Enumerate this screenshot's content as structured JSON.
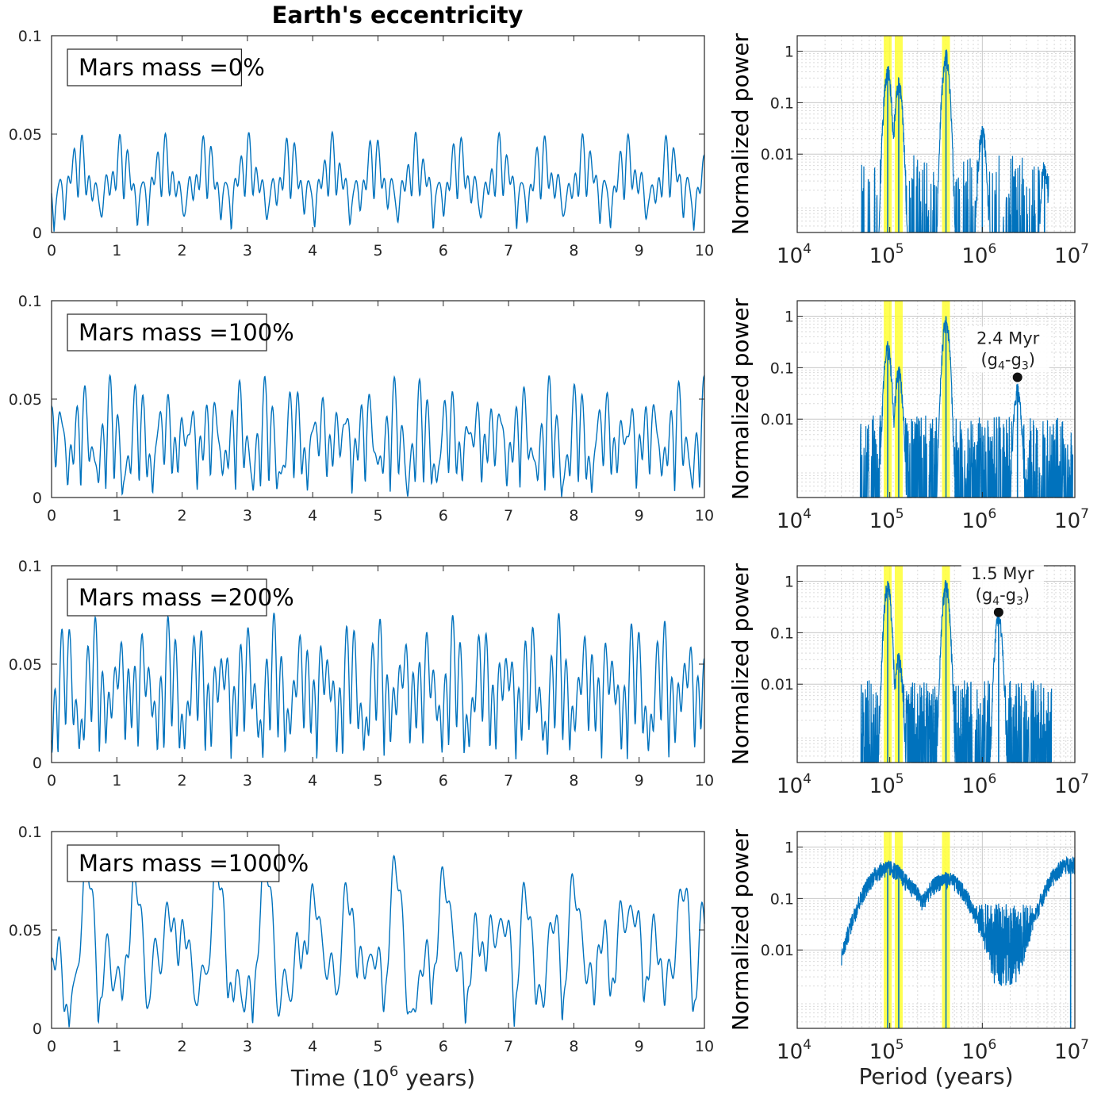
{
  "title": "Earth's eccentricity",
  "time_axis_label": "Time (10",
  "time_axis_label_sup": "6",
  "time_axis_label_tail": " years)",
  "period_axis_label": "Period (years)",
  "power_axis_label": "Normalized power",
  "colors": {
    "line": "#0072BD",
    "highlight": "#FFFF33",
    "grid": "#d9d9d9",
    "axis": "#262626"
  },
  "chart_data": [
    {
      "type": "line",
      "panel": "time-series",
      "legend": "Mars mass =0%",
      "xlim": [
        0,
        10
      ],
      "ylim": [
        0,
        0.1
      ],
      "xticks": [
        "0",
        "1",
        "2",
        "3",
        "4",
        "5",
        "6",
        "7",
        "8",
        "9",
        "10"
      ],
      "yticks": [
        "0",
        "0.05",
        "0.1"
      ],
      "x": [
        0,
        0.5,
        1,
        1.5,
        2,
        2.5,
        3,
        3.5,
        4,
        4.5,
        5,
        5.5,
        6,
        6.5,
        7,
        7.5,
        8,
        8.5,
        9,
        9.5,
        10
      ],
      "y": [
        0.01,
        0.04,
        0.02,
        0.04,
        0.01,
        0.04,
        0.035,
        0.03,
        0.042,
        0.035,
        0.03,
        0.04,
        0.0,
        0.05,
        0.035,
        0.04,
        0.02,
        0.04,
        0.03,
        0.04,
        0.017
      ],
      "ymax": 0.051,
      "grid": false
    },
    {
      "type": "line",
      "panel": "spectrum",
      "xscale": "log",
      "yscale": "log",
      "xlim": [
        10000,
        10000000
      ],
      "ylim": [
        0.0003,
        2
      ],
      "xticks": [
        "10^4",
        "10^5",
        "10^6",
        "10^7"
      ],
      "yticks": [
        "0.01",
        "0.1",
        "1"
      ],
      "highlight_periods": [
        95000,
        125000,
        405000
      ],
      "peaks": [
        [
          95000,
          0.5
        ],
        [
          125000,
          0.3
        ],
        [
          405000,
          1.0
        ],
        [
          1000000,
          0.035
        ],
        [
          4700000,
          0.006
        ]
      ],
      "grid": true
    },
    {
      "type": "line",
      "panel": "time-series",
      "legend": "Mars mass =100%",
      "xlim": [
        0,
        10
      ],
      "ylim": [
        0,
        0.1
      ],
      "xticks": [
        "0",
        "1",
        "2",
        "3",
        "4",
        "5",
        "6",
        "7",
        "8",
        "9",
        "10"
      ],
      "yticks": [
        "0",
        "0.05",
        "0.1"
      ],
      "ymax": 0.062,
      "grid": false
    },
    {
      "type": "line",
      "panel": "spectrum",
      "xscale": "log",
      "yscale": "log",
      "xlim": [
        10000,
        10000000
      ],
      "ylim": [
        0.0003,
        2
      ],
      "xticks": [
        "10^4",
        "10^5",
        "10^6",
        "10^7"
      ],
      "yticks": [
        "0.01",
        "0.1",
        "1"
      ],
      "highlight_periods": [
        95000,
        125000,
        405000
      ],
      "peaks": [
        [
          95000,
          0.3
        ],
        [
          125000,
          0.1
        ],
        [
          405000,
          1.0
        ],
        [
          2400000,
          0.045
        ]
      ],
      "annotation": {
        "line1": "2.4 Myr",
        "line2_g4": "(g",
        "sub4": "4",
        "dash": "-g",
        "sub3": "3",
        "close": ")",
        "x": 2400000,
        "y": 0.065
      },
      "grid": true
    },
    {
      "type": "line",
      "panel": "time-series",
      "legend": "Mars mass =200%",
      "xlim": [
        0,
        10
      ],
      "ylim": [
        0,
        0.1
      ],
      "xticks": [
        "0",
        "1",
        "2",
        "3",
        "4",
        "5",
        "6",
        "7",
        "8",
        "9",
        "10"
      ],
      "yticks": [
        "0",
        "0.05",
        "0.1"
      ],
      "ymax": 0.076,
      "grid": false
    },
    {
      "type": "line",
      "panel": "spectrum",
      "xscale": "log",
      "yscale": "log",
      "xlim": [
        10000,
        10000000
      ],
      "ylim": [
        0.0003,
        2
      ],
      "xticks": [
        "10^4",
        "10^5",
        "10^6",
        "10^7"
      ],
      "yticks": [
        "0.01",
        "0.1",
        "1"
      ],
      "highlight_periods": [
        95000,
        125000,
        405000
      ],
      "peaks": [
        [
          95000,
          1.0
        ],
        [
          125000,
          0.04
        ],
        [
          405000,
          1.0
        ],
        [
          1500000,
          0.25
        ]
      ],
      "annotation": {
        "line1": "1.5 Myr",
        "line2_g4": "(g",
        "sub4": "4",
        "dash": "-g",
        "sub3": "3",
        "close": ")",
        "x": 1500000,
        "y": 0.25
      },
      "grid": true
    },
    {
      "type": "line",
      "panel": "time-series",
      "legend": "Mars mass =1000%",
      "xlim": [
        0,
        10
      ],
      "ylim": [
        0,
        0.1
      ],
      "xticks": [
        "0",
        "1",
        "2",
        "3",
        "4",
        "5",
        "6",
        "7",
        "8",
        "9",
        "10"
      ],
      "yticks": [
        "0",
        "0.05",
        "0.1"
      ],
      "ymax": 0.09,
      "grid": false
    },
    {
      "type": "line",
      "panel": "spectrum",
      "xscale": "log",
      "yscale": "log",
      "xlim": [
        10000,
        10000000
      ],
      "ylim": [
        0.0003,
        2
      ],
      "xticks": [
        "10^4",
        "10^5",
        "10^6",
        "10^7"
      ],
      "yticks": [
        "0.01",
        "0.1",
        "1"
      ],
      "highlight_periods": [
        95000,
        125000,
        405000
      ],
      "peaks": [
        [
          95000,
          0.5
        ],
        [
          125000,
          0.3
        ],
        [
          405000,
          0.3
        ],
        [
          9000000,
          0.6
        ]
      ],
      "grid": true
    }
  ]
}
